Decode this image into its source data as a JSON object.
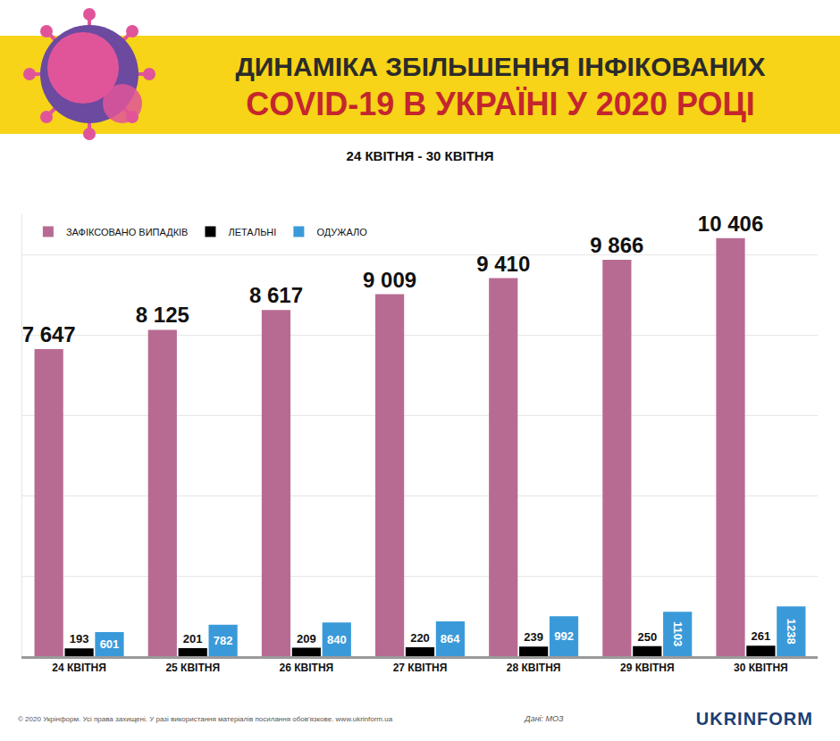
{
  "chart_data": {
    "type": "bar",
    "title": [
      "ДИНАМІКА ЗБІЛЬШЕННЯ ІНФІКОВАНИХ",
      "COVID-19 В УКРАЇНІ У 2020 РОЦІ"
    ],
    "subtitle": "24 КВІТНЯ - 30 КВІТНЯ",
    "categories": [
      "24 КВІТНЯ",
      "25 КВІТНЯ",
      "26 КВІТНЯ",
      "27 КВІТНЯ",
      "28 КВІТНЯ",
      "29 КВІТНЯ",
      "30 КВІТНЯ"
    ],
    "series": [
      {
        "name": "ЗАФІКСОВАНО ВИПАДКІВ",
        "color": "#b86b92",
        "values": [
          7647,
          8125,
          8617,
          9009,
          9410,
          9866,
          10406
        ],
        "value_labels": [
          "7 647",
          "8 125",
          "8 617",
          "9 009",
          "9 410",
          "9 866",
          "10 406"
        ]
      },
      {
        "name": "ЛЕТАЛЬНІ",
        "color": "#000000",
        "values": [
          193,
          201,
          209,
          220,
          239,
          250,
          261
        ]
      },
      {
        "name": "ОДУЖАЛО",
        "color": "#3a9ad9",
        "values": [
          601,
          782,
          840,
          864,
          992,
          1103,
          1238
        ]
      }
    ],
    "ylim": [
      0,
      11000
    ],
    "yticks": [
      0,
      2000,
      4000,
      6000,
      8000,
      10000
    ],
    "grid": true,
    "tick_labels": "x",
    "legend": "upper left",
    "data_labels": true,
    "annotations": [
      "© 2020 Укрінформ. Усі права захищені. У разі використання матеріалів посилання обов'язкове. www.ukrinform.ua",
      "Дані: МОЗ",
      "UKRINFORM"
    ]
  }
}
